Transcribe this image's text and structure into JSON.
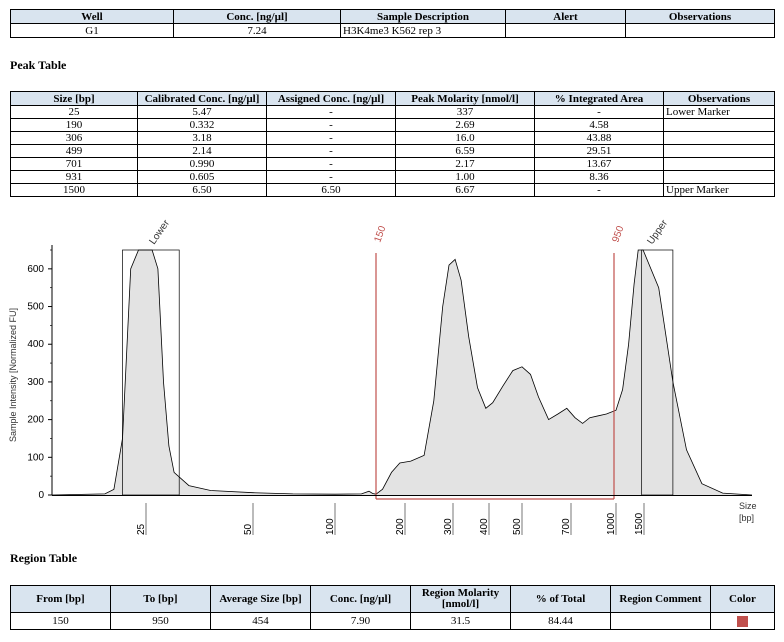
{
  "well_table": {
    "headers": [
      "Well",
      "Conc. [ng/µl]",
      "Sample Description",
      "Alert",
      "Observations"
    ],
    "row": [
      "G1",
      "7.24",
      "H3K4me3 K562 rep 3",
      "",
      ""
    ]
  },
  "peak_section_title": "Peak Table",
  "peak_table": {
    "headers": [
      "Size [bp]",
      "Calibrated Conc. [ng/µl]",
      "Assigned Conc. [ng/µl]",
      "Peak Molarity [nmol/l]",
      "% Integrated Area",
      "Observations"
    ],
    "rows": [
      [
        "25",
        "5.47",
        "-",
        "337",
        "-",
        "Lower Marker"
      ],
      [
        "190",
        "0.332",
        "-",
        "2.69",
        "4.58",
        ""
      ],
      [
        "306",
        "3.18",
        "-",
        "16.0",
        "43.88",
        ""
      ],
      [
        "499",
        "2.14",
        "-",
        "6.59",
        "29.51",
        ""
      ],
      [
        "701",
        "0.990",
        "-",
        "2.17",
        "13.67",
        ""
      ],
      [
        "931",
        "0.605",
        "-",
        "1.00",
        "8.36",
        ""
      ],
      [
        "1500",
        "6.50",
        "6.50",
        "6.67",
        "-",
        "Upper Marker"
      ]
    ]
  },
  "chart_data": {
    "type": "area",
    "xlabel": "Size\n[bp]",
    "xlabel_lines": [
      "Size",
      "[bp]"
    ],
    "ylabel": "Sample Intensity [Normalized FU]",
    "ylim": [
      0,
      650
    ],
    "yticks": [
      "0",
      "100",
      "200",
      "300",
      "400",
      "500",
      "600"
    ],
    "ytick_values": [
      0,
      100,
      200,
      300,
      400,
      500,
      600
    ],
    "xticks": [
      {
        "label": "25",
        "bp": 25
      },
      {
        "label": "50",
        "bp": 50
      },
      {
        "label": "100",
        "bp": 100
      },
      {
        "label": "200",
        "bp": 200
      },
      {
        "label": "300",
        "bp": 300
      },
      {
        "label": "400",
        "bp": 400
      },
      {
        "label": "500",
        "bp": 500
      },
      {
        "label": "700",
        "bp": 700
      },
      {
        "label": "1000",
        "bp": 1000
      },
      {
        "label": "1500",
        "bp": 1500
      }
    ],
    "markers": [
      {
        "label": "Lower",
        "bp": 25
      },
      {
        "label": "Upper",
        "bp": 1500
      }
    ],
    "region": {
      "from_label": "150",
      "to_label": "950",
      "from": 150,
      "to": 950,
      "color": "#c0504d"
    },
    "trace": [
      [
        15,
        0
      ],
      [
        20,
        3
      ],
      [
        21,
        15
      ],
      [
        22,
        150
      ],
      [
        23,
        600
      ],
      [
        24,
        680
      ],
      [
        26,
        680
      ],
      [
        27,
        600
      ],
      [
        28,
        300
      ],
      [
        29,
        130
      ],
      [
        30,
        60
      ],
      [
        33,
        25
      ],
      [
        38,
        12
      ],
      [
        50,
        6
      ],
      [
        70,
        3
      ],
      [
        100,
        2
      ],
      [
        130,
        3
      ],
      [
        140,
        10
      ],
      [
        145,
        4
      ],
      [
        150,
        2
      ],
      [
        160,
        15
      ],
      [
        175,
        60
      ],
      [
        190,
        85
      ],
      [
        210,
        90
      ],
      [
        235,
        105
      ],
      [
        255,
        250
      ],
      [
        275,
        500
      ],
      [
        290,
        610
      ],
      [
        305,
        625
      ],
      [
        320,
        570
      ],
      [
        340,
        420
      ],
      [
        365,
        285
      ],
      [
        390,
        230
      ],
      [
        410,
        245
      ],
      [
        440,
        290
      ],
      [
        470,
        330
      ],
      [
        500,
        340
      ],
      [
        530,
        320
      ],
      [
        560,
        260
      ],
      [
        600,
        200
      ],
      [
        640,
        215
      ],
      [
        680,
        230
      ],
      [
        720,
        205
      ],
      [
        760,
        190
      ],
      [
        800,
        205
      ],
      [
        850,
        210
      ],
      [
        900,
        215
      ],
      [
        1000,
        225
      ],
      [
        1100,
        280
      ],
      [
        1200,
        400
      ],
      [
        1300,
        560
      ],
      [
        1380,
        680
      ],
      [
        1480,
        680
      ],
      [
        1560,
        550
      ],
      [
        1620,
        300
      ],
      [
        1680,
        120
      ],
      [
        1750,
        30
      ],
      [
        1850,
        5
      ],
      [
        2000,
        0
      ]
    ]
  },
  "region_section_title": "Region Table",
  "region_table": {
    "headers": [
      "From [bp]",
      "To [bp]",
      "Average Size [bp]",
      "Conc. [ng/µl]",
      "Region Molarity [nmol/l]",
      "% of Total",
      "Region Comment",
      "Color"
    ],
    "row": [
      "150",
      "950",
      "454",
      "7.90",
      "31.5",
      "84.44",
      ""
    ],
    "color": "#c0504d"
  }
}
